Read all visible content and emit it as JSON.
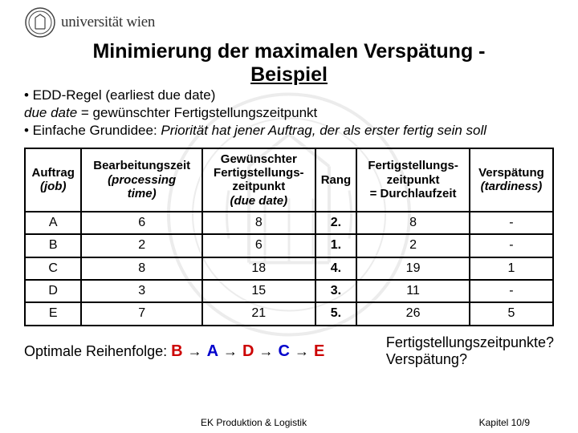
{
  "logo": {
    "text": "universität wien",
    "seal_stroke": "#444444"
  },
  "title_line1": "Minimierung der maximalen Verspätung -",
  "title_line2": "Beispiel",
  "bullets": {
    "b1_prefix": "• EDD-Regel (earliest due date)",
    "b1_line2a": "due date",
    "b1_line2b": " = gewünschter Fertigstellungszeitpunkt",
    "b2a": "• Einfache Grundidee: ",
    "b2b": "Priorität hat jener Auftrag, der als erster fertig sein soll"
  },
  "table": {
    "headers": {
      "c0a": "Auftrag",
      "c0b": "(job)",
      "c1a": "Bearbeitungszeit",
      "c1b": "(processing",
      "c1c": "time)",
      "c2a": "Gewünschter",
      "c2b": "Fertigstellungs-",
      "c2c": "zeitpunkt",
      "c2d": "(due date)",
      "c3": "Rang",
      "c4a": "Fertigstellungs-",
      "c4b": "zeitpunkt",
      "c4c": "= Durchlaufzeit",
      "c5a": "Verspätung",
      "c5b": "(tardiness)"
    },
    "rows": [
      {
        "auftrag": "A",
        "bearb": "6",
        "due": "8",
        "rang": "2.",
        "fert": "8",
        "tard": "-"
      },
      {
        "auftrag": "B",
        "bearb": "2",
        "due": "6",
        "rang": "1.",
        "fert": "2",
        "tard": "-"
      },
      {
        "auftrag": "C",
        "bearb": "8",
        "due": "18",
        "rang": "4.",
        "fert": "19",
        "tard": "1"
      },
      {
        "auftrag": "D",
        "bearb": "3",
        "due": "15",
        "rang": "3.",
        "fert": "11",
        "tard": "-"
      },
      {
        "auftrag": "E",
        "bearb": "7",
        "due": "21",
        "rang": "5.",
        "fert": "26",
        "tard": "5"
      }
    ]
  },
  "sequence": {
    "label": "Optimale Reihenfolge: ",
    "items": [
      "B",
      "A",
      "D",
      "C",
      "E"
    ],
    "colors": [
      "#cc0000",
      "#0000cc",
      "#cc0000",
      "#0000cc",
      "#cc0000"
    ]
  },
  "questions": {
    "q1": "Fertigstellungszeitpunkte?",
    "q2": "Verspätung?"
  },
  "footer": {
    "left": "EK Produktion & Logistik",
    "right": "Kapitel 10/9"
  },
  "watermark": {
    "stroke": "#222222"
  }
}
